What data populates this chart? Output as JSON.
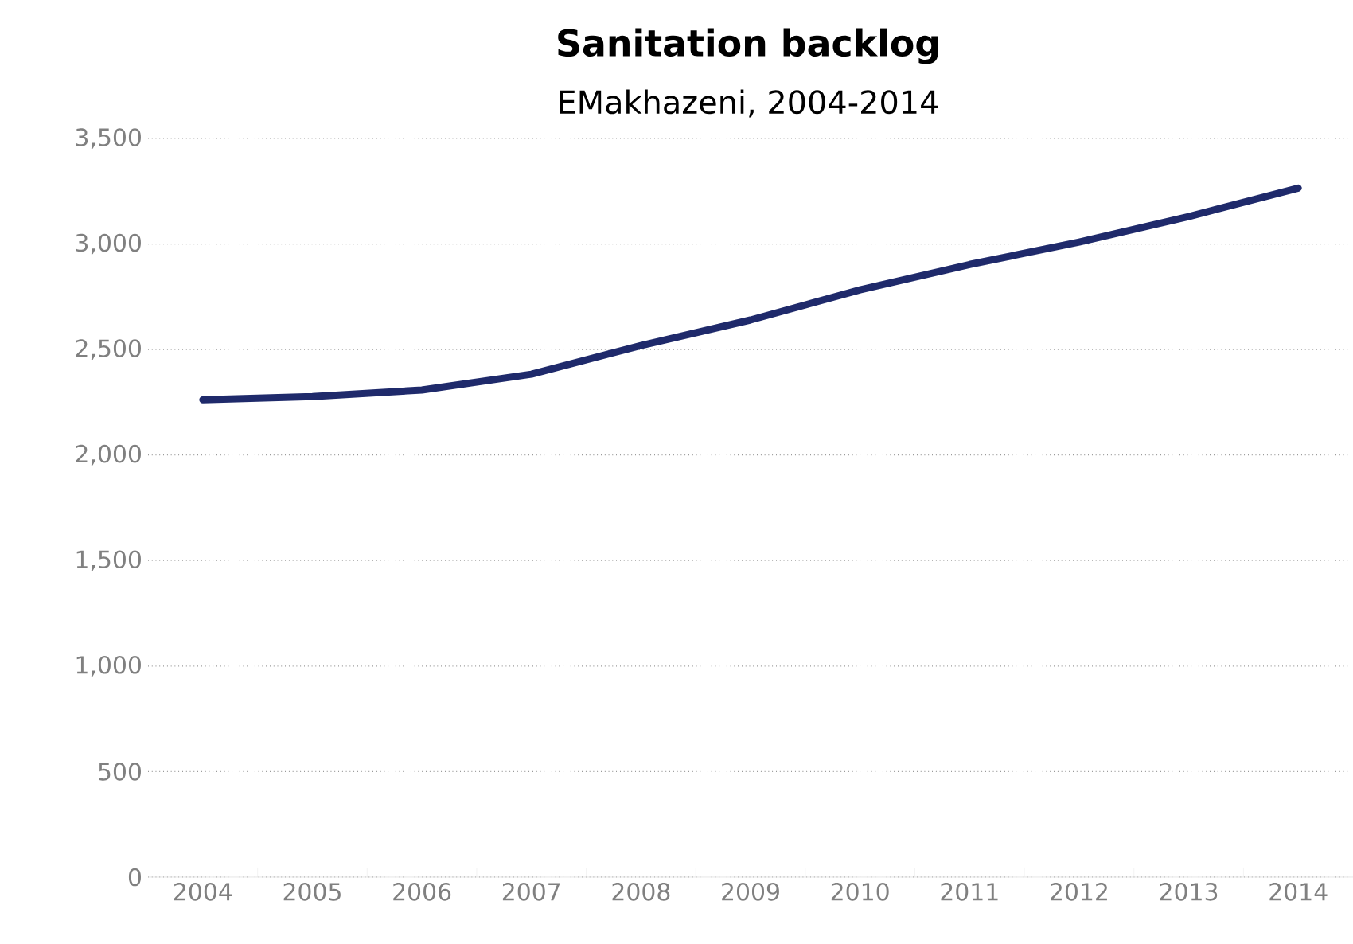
{
  "chart_data": {
    "type": "line",
    "title": "Sanitation backlog",
    "subtitle": "EMakhazeni, 2004-2014",
    "categories": [
      "2004",
      "2005",
      "2006",
      "2007",
      "2008",
      "2009",
      "2010",
      "2011",
      "2012",
      "2013",
      "2014"
    ],
    "series": [
      {
        "color": "#1f2a6b",
        "values": [
          2262,
          2277,
          2308,
          2383,
          2519,
          2640,
          2783,
          2903,
          3009,
          3130,
          3265
        ]
      }
    ],
    "ylim": [
      0,
      3500
    ],
    "yticks": [
      {
        "value": 0,
        "label": "0"
      },
      {
        "value": 500,
        "label": "500"
      },
      {
        "value": 1000,
        "label": "1,000"
      },
      {
        "value": 1500,
        "label": "1,500"
      },
      {
        "value": 2000,
        "label": "2,000"
      },
      {
        "value": 2500,
        "label": "2,500"
      },
      {
        "value": 3000,
        "label": "3,000"
      },
      {
        "value": 3500,
        "label": "3,500"
      }
    ],
    "grid": "y",
    "marker": "none",
    "line_style": "solid"
  }
}
